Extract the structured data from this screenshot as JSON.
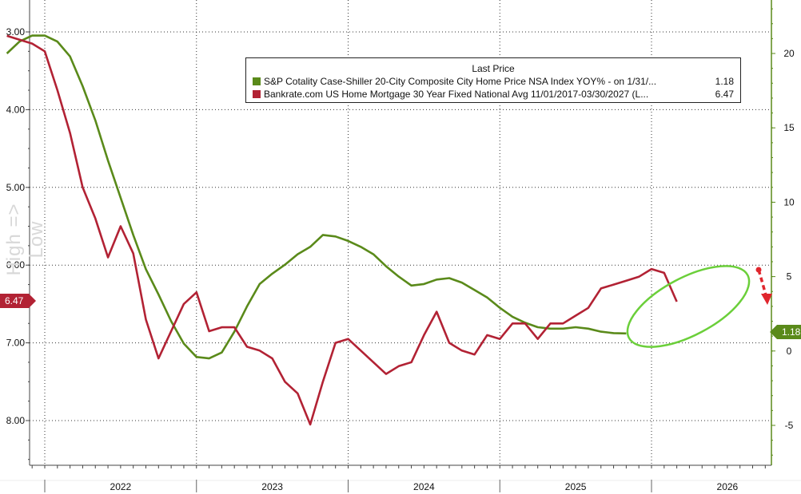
{
  "chart_data": {
    "type": "line",
    "side_label": "High => Low",
    "x_tick_labels": [
      "2022",
      "2023",
      "2024",
      "2025",
      "2026"
    ],
    "left_axis": {
      "ticks": [
        "3.00",
        "4.00",
        "5.00",
        "6.00",
        "7.00",
        "8.00"
      ],
      "ylim": [
        8.55,
        2.6
      ],
      "inverted": true
    },
    "right_axis": {
      "ticks": [
        "-5",
        "0",
        "5",
        "10",
        "15",
        "20"
      ],
      "ylim": [
        -7.5,
        23.5
      ]
    },
    "legend": {
      "title": "Last Price",
      "placement": "top-right",
      "entries": [
        {
          "name": "S&P Cotality Case-Shiller 20-City Composite City Home Price NSA Index YOY% -  on 1/31/...",
          "value": "1.18",
          "color": "#5a8a1a"
        },
        {
          "name": "Bankrate.com US Home Mortgage 30 Year Fixed National Avg 11/01/2017-03/30/2027   (L...",
          "value": "6.47",
          "color": "#b22234"
        }
      ]
    },
    "last_value_badges": {
      "mortgage": "6.47",
      "case_shiller": "1.18"
    },
    "grid": true,
    "annotations": [
      "highlight-ellipse-late-2025-2026",
      "down-arrow-recent-mortgage-drop"
    ],
    "series": [
      {
        "name": "S&P Cotality Case-Shiller 20-City Composite City Home Price NSA Index YOY%",
        "axis": "right",
        "color": "#5a8a1a",
        "points": [
          [
            "2021-10",
            20.0
          ],
          [
            "2021-11",
            20.8
          ],
          [
            "2021-12",
            21.2
          ],
          [
            "2022-01",
            21.2
          ],
          [
            "2022-02",
            20.8
          ],
          [
            "2022-03",
            19.8
          ],
          [
            "2022-04",
            17.8
          ],
          [
            "2022-05",
            15.5
          ],
          [
            "2022-06",
            12.8
          ],
          [
            "2022-07",
            10.3
          ],
          [
            "2022-08",
            7.8
          ],
          [
            "2022-09",
            5.5
          ],
          [
            "2022-10",
            3.8
          ],
          [
            "2022-11",
            2.0
          ],
          [
            "2022-12",
            0.5
          ],
          [
            "2023-01",
            -0.4
          ],
          [
            "2023-02",
            -0.5
          ],
          [
            "2023-03",
            -0.1
          ],
          [
            "2023-04",
            1.3
          ],
          [
            "2023-05",
            3.0
          ],
          [
            "2023-06",
            4.5
          ],
          [
            "2023-07",
            5.2
          ],
          [
            "2023-08",
            5.8
          ],
          [
            "2023-09",
            6.5
          ],
          [
            "2023-10",
            7.0
          ],
          [
            "2023-11",
            7.8
          ],
          [
            "2023-12",
            7.7
          ],
          [
            "2024-01",
            7.4
          ],
          [
            "2024-02",
            7.0
          ],
          [
            "2024-03",
            6.5
          ],
          [
            "2024-04",
            5.7
          ],
          [
            "2024-05",
            5.0
          ],
          [
            "2024-06",
            4.4
          ],
          [
            "2024-07",
            4.5
          ],
          [
            "2024-08",
            4.8
          ],
          [
            "2024-09",
            4.9
          ],
          [
            "2024-10",
            4.6
          ],
          [
            "2024-11",
            4.1
          ],
          [
            "2024-12",
            3.6
          ],
          [
            "2025-01",
            2.9
          ],
          [
            "2025-02",
            2.3
          ],
          [
            "2025-03",
            1.9
          ],
          [
            "2025-04",
            1.6
          ],
          [
            "2025-05",
            1.5
          ],
          [
            "2025-06",
            1.5
          ],
          [
            "2025-07",
            1.6
          ],
          [
            "2025-08",
            1.5
          ],
          [
            "2025-09",
            1.3
          ],
          [
            "2025-10",
            1.2
          ],
          [
            "2025-11",
            1.18
          ]
        ]
      },
      {
        "name": "Bankrate.com US Home Mortgage 30 Year Fixed National Avg",
        "axis": "left",
        "color": "#b22234",
        "points": [
          [
            "2021-10",
            3.05
          ],
          [
            "2021-11",
            3.1
          ],
          [
            "2021-12",
            3.15
          ],
          [
            "2022-01",
            3.25
          ],
          [
            "2022-02",
            3.75
          ],
          [
            "2022-03",
            4.3
          ],
          [
            "2022-04",
            5.0
          ],
          [
            "2022-05",
            5.4
          ],
          [
            "2022-06",
            5.9
          ],
          [
            "2022-07",
            5.5
          ],
          [
            "2022-08",
            5.85
          ],
          [
            "2022-09",
            6.7
          ],
          [
            "2022-10",
            7.2
          ],
          [
            "2022-11",
            6.85
          ],
          [
            "2022-12",
            6.5
          ],
          [
            "2023-01",
            6.35
          ],
          [
            "2023-02",
            6.85
          ],
          [
            "2023-03",
            6.8
          ],
          [
            "2023-04",
            6.8
          ],
          [
            "2023-05",
            7.05
          ],
          [
            "2023-06",
            7.1
          ],
          [
            "2023-07",
            7.2
          ],
          [
            "2023-08",
            7.5
          ],
          [
            "2023-09",
            7.65
          ],
          [
            "2023-10",
            8.05
          ],
          [
            "2023-11",
            7.5
          ],
          [
            "2023-12",
            7.0
          ],
          [
            "2024-01",
            6.95
          ],
          [
            "2024-02",
            7.1
          ],
          [
            "2024-03",
            7.25
          ],
          [
            "2024-04",
            7.4
          ],
          [
            "2024-05",
            7.3
          ],
          [
            "2024-06",
            7.25
          ],
          [
            "2024-07",
            6.9
          ],
          [
            "2024-08",
            6.6
          ],
          [
            "2024-09",
            7.0
          ],
          [
            "2024-10",
            7.1
          ],
          [
            "2024-11",
            7.15
          ],
          [
            "2024-12",
            6.9
          ],
          [
            "2025-01",
            6.95
          ],
          [
            "2025-02",
            6.75
          ],
          [
            "2025-03",
            6.75
          ],
          [
            "2025-04",
            6.95
          ],
          [
            "2025-05",
            6.75
          ],
          [
            "2025-06",
            6.75
          ],
          [
            "2025-07",
            6.65
          ],
          [
            "2025-08",
            6.55
          ],
          [
            "2025-09",
            6.3
          ],
          [
            "2025-10",
            6.25
          ],
          [
            "2025-11",
            6.2
          ],
          [
            "2025-12",
            6.15
          ],
          [
            "2026-01",
            6.05
          ],
          [
            "2026-02",
            6.1
          ],
          [
            "2026-03",
            6.47
          ]
        ]
      }
    ]
  }
}
